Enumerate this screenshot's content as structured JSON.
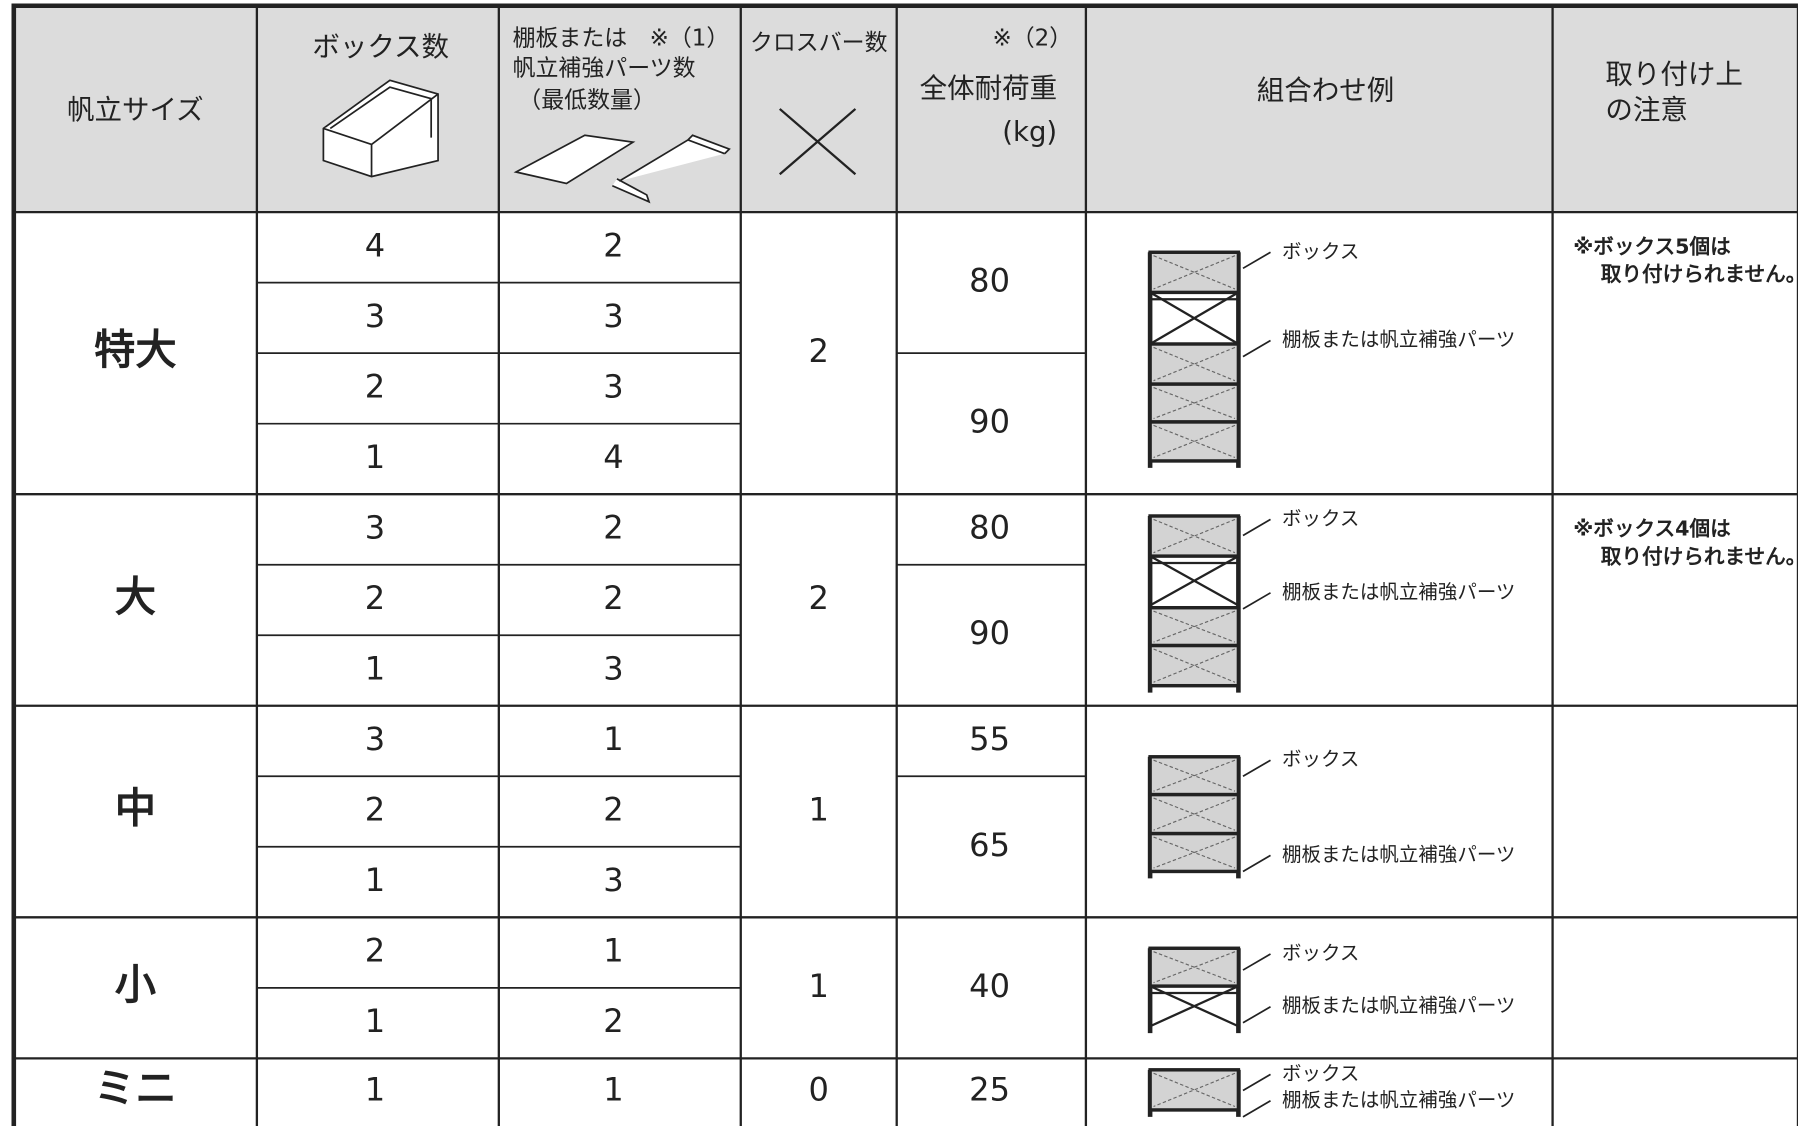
{
  "header": {
    "size": "帆立サイズ",
    "boxes": "ボックス数",
    "shelves": [
      "棚板または",
      "※（1）",
      "帆立補強パーツ数",
      "（最低数量）"
    ],
    "crossbars": "クロスバー数",
    "load_note": "※（2）",
    "load": "全体耐荷重",
    "load_unit": "(kg)",
    "example": "組合わせ例",
    "caution": [
      "取り付け上",
      "の注意"
    ]
  },
  "groups": [
    {
      "size": "特大",
      "crossbars": 2,
      "rows": [
        {
          "boxes": 4,
          "shelves": 2
        },
        {
          "boxes": 3,
          "shelves": 3
        },
        {
          "boxes": 2,
          "shelves": 3
        },
        {
          "boxes": 1,
          "shelves": 4
        }
      ],
      "loads": [
        80,
        null,
        90,
        null
      ],
      "labels": [
        "ボックス",
        "棚板または帆立補強パーツ"
      ],
      "caution": [
        "※ボックス5個は",
        "取り付けられません。"
      ]
    },
    {
      "size": "大",
      "crossbars": 2,
      "rows": [
        {
          "boxes": 3,
          "shelves": 2
        },
        {
          "boxes": 2,
          "shelves": 2
        },
        {
          "boxes": 1,
          "shelves": 3
        }
      ],
      "loads": [
        80,
        90,
        null
      ],
      "labels": [
        "ボックス",
        "棚板または帆立補強パーツ"
      ],
      "caution": [
        "※ボックス4個は",
        "取り付けられません。"
      ]
    },
    {
      "size": "中",
      "crossbars": 1,
      "rows": [
        {
          "boxes": 3,
          "shelves": 1
        },
        {
          "boxes": 2,
          "shelves": 2
        },
        {
          "boxes": 1,
          "shelves": 3
        }
      ],
      "loads": [
        55,
        65,
        null
      ],
      "labels": [
        "ボックス",
        "棚板または帆立補強パーツ"
      ]
    },
    {
      "size": "小",
      "crossbars": 1,
      "rows": [
        {
          "boxes": 2,
          "shelves": 1
        },
        {
          "boxes": 1,
          "shelves": 2
        }
      ],
      "loads": [
        40,
        null
      ],
      "labels": [
        "ボックス",
        "棚板または帆立補強パーツ"
      ]
    },
    {
      "size": "ミニ",
      "crossbars": 0,
      "rows": [
        {
          "boxes": 1,
          "shelves": 1
        }
      ],
      "loads": [
        25
      ],
      "labels": [
        "ボックス",
        "棚板または帆立補強パーツ"
      ]
    }
  ]
}
